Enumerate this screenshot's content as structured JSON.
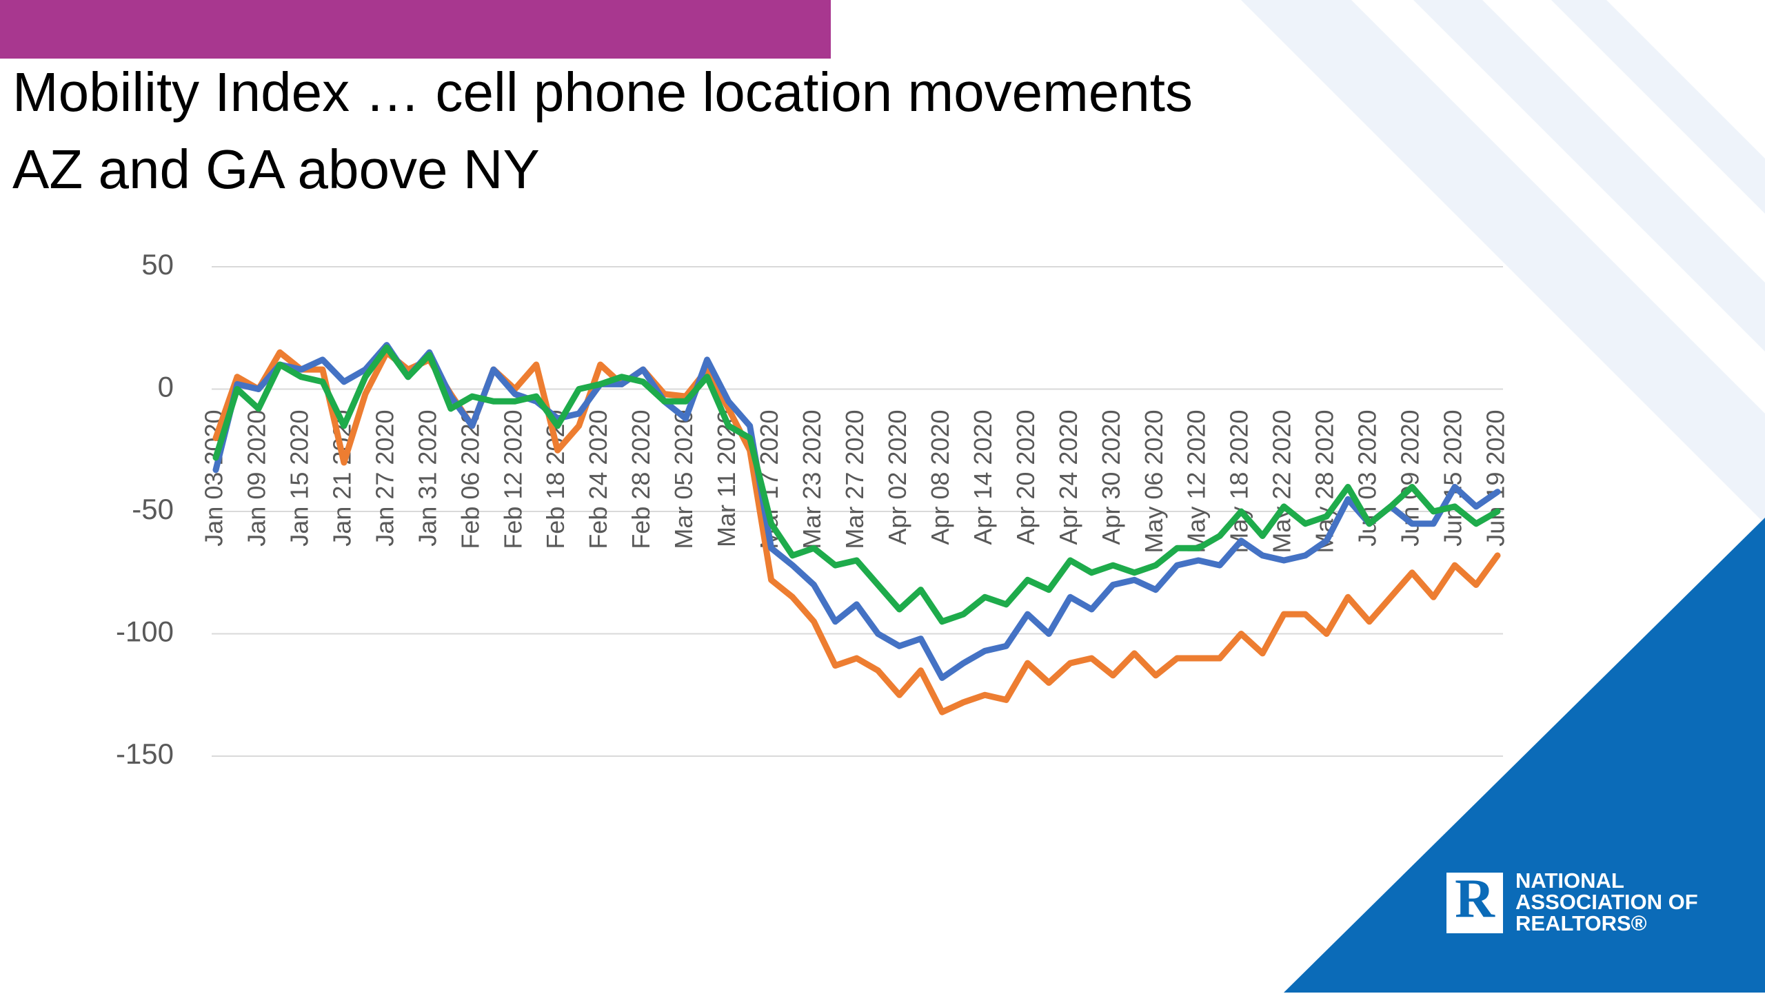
{
  "chart_data": {
    "type": "line",
    "title": "Mobility Index … cell phone location movements",
    "subtitle": "AZ and GA above NY",
    "categories": [
      "Jan 03 2020",
      null,
      "Jan 09 2020",
      null,
      "Jan 15 2020",
      null,
      "Jan 21 2020",
      null,
      "Jan 27 2020",
      null,
      "Jan 31 2020",
      null,
      "Feb 06 2020",
      null,
      "Feb 12 2020",
      null,
      "Feb 18 2020",
      null,
      "Feb 24 2020",
      null,
      "Feb 28 2020",
      null,
      "Mar 05 2020",
      null,
      "Mar 11 2020",
      null,
      "Mar 17 2020",
      null,
      "Mar 23 2020",
      null,
      "Mar 27 2020",
      null,
      "Apr 02 2020",
      null,
      "Apr 08 2020",
      null,
      "Apr 14 2020",
      null,
      "Apr 20 2020",
      null,
      "Apr 24 2020",
      null,
      "Apr 30 2020",
      null,
      "May 06 2020",
      null,
      "May 12 2020",
      null,
      "May 18 2020",
      null,
      "May 22 2020",
      null,
      "May 28 2020",
      null,
      "Jun 03 2020",
      null,
      "Jun 09 2020",
      null,
      "Jun 15 2020",
      null,
      "Jun 19 2020"
    ],
    "series": [
      {
        "color": "#ed7d31",
        "values": [
          -20,
          5,
          0,
          15,
          8,
          8,
          -30,
          -2,
          15,
          8,
          12,
          -2,
          -15,
          8,
          0,
          10,
          -25,
          -15,
          10,
          2,
          8,
          -2,
          -3,
          8,
          -8,
          -25,
          -78,
          -85,
          -95,
          -113,
          -110,
          -115,
          -125,
          -115,
          -132,
          -128,
          -125,
          -127,
          -112,
          -120,
          -112,
          -110,
          -117,
          -108,
          -117,
          -110,
          -110,
          -110,
          -100,
          -108,
          -92,
          -92,
          -100,
          -85,
          -95,
          -85,
          -75,
          -85,
          -72,
          -80,
          -68
        ]
      },
      {
        "color": "#4472c4",
        "values": [
          -33,
          2,
          0,
          10,
          8,
          12,
          3,
          8,
          18,
          5,
          15,
          -3,
          -15,
          8,
          -2,
          -5,
          -12,
          -10,
          2,
          2,
          8,
          -5,
          -12,
          12,
          -5,
          -15,
          -65,
          -72,
          -80,
          -95,
          -88,
          -100,
          -105,
          -102,
          -118,
          -112,
          -107,
          -105,
          -92,
          -100,
          -85,
          -90,
          -80,
          -78,
          -82,
          -72,
          -70,
          -72,
          -62,
          -68,
          -70,
          -68,
          -62,
          -45,
          -55,
          -48,
          -55,
          -55,
          -40,
          -48,
          -42
        ]
      },
      {
        "color": "#1eab4b",
        "values": [
          -28,
          0,
          -8,
          10,
          5,
          3,
          -15,
          5,
          17,
          5,
          14,
          -8,
          -3,
          -5,
          -5,
          -3,
          -15,
          0,
          2,
          5,
          3,
          -5,
          -5,
          5,
          -15,
          -20,
          -55,
          -68,
          -65,
          -72,
          -70,
          -80,
          -90,
          -82,
          -95,
          -92,
          -85,
          -88,
          -78,
          -82,
          -70,
          -75,
          -72,
          -75,
          -72,
          -65,
          -65,
          -60,
          -50,
          -60,
          -48,
          -55,
          -52,
          -40,
          -55,
          -48,
          -40,
          -50,
          -48,
          -55,
          -50
        ]
      }
    ],
    "ylim": [
      -150,
      50
    ],
    "yticks": [
      -150,
      -100,
      -50,
      0,
      50
    ],
    "grid": true
  },
  "logo": {
    "lines": [
      "NATIONAL",
      "ASSOCIATION OF",
      "REALTORS®"
    ]
  }
}
